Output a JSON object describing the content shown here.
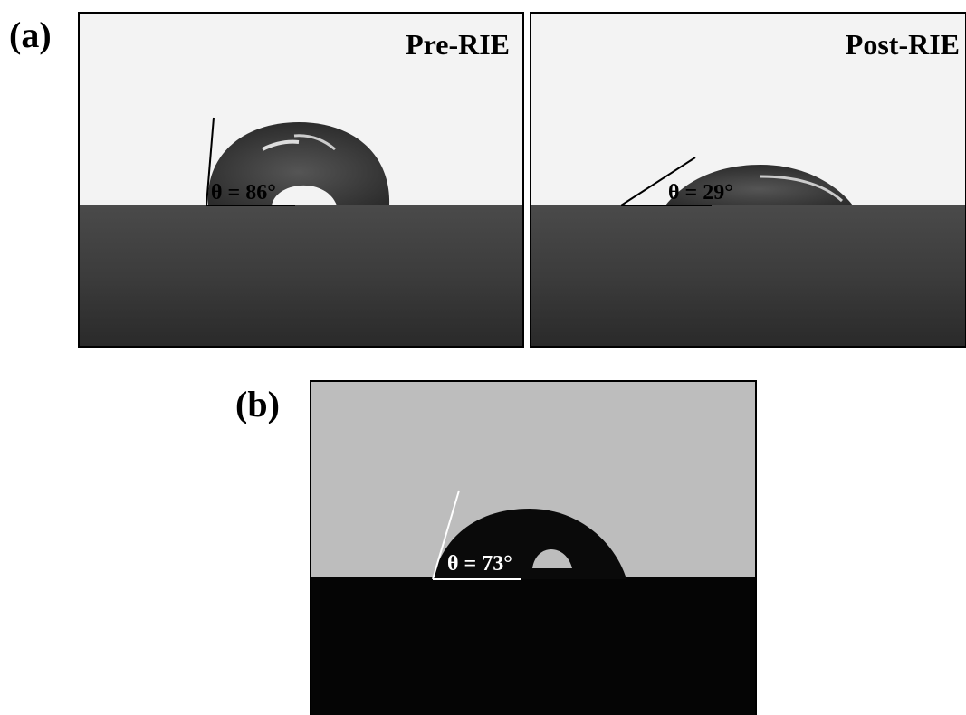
{
  "panels": [
    {
      "label": "(a)",
      "images": [
        {
          "title": "Pre-RIE",
          "angle": "θ = 86°"
        },
        {
          "title": "Post-RIE",
          "angle": "θ = 29°"
        }
      ]
    },
    {
      "label": "(b)",
      "images": [
        {
          "angle": "θ = 73°"
        }
      ]
    }
  ]
}
